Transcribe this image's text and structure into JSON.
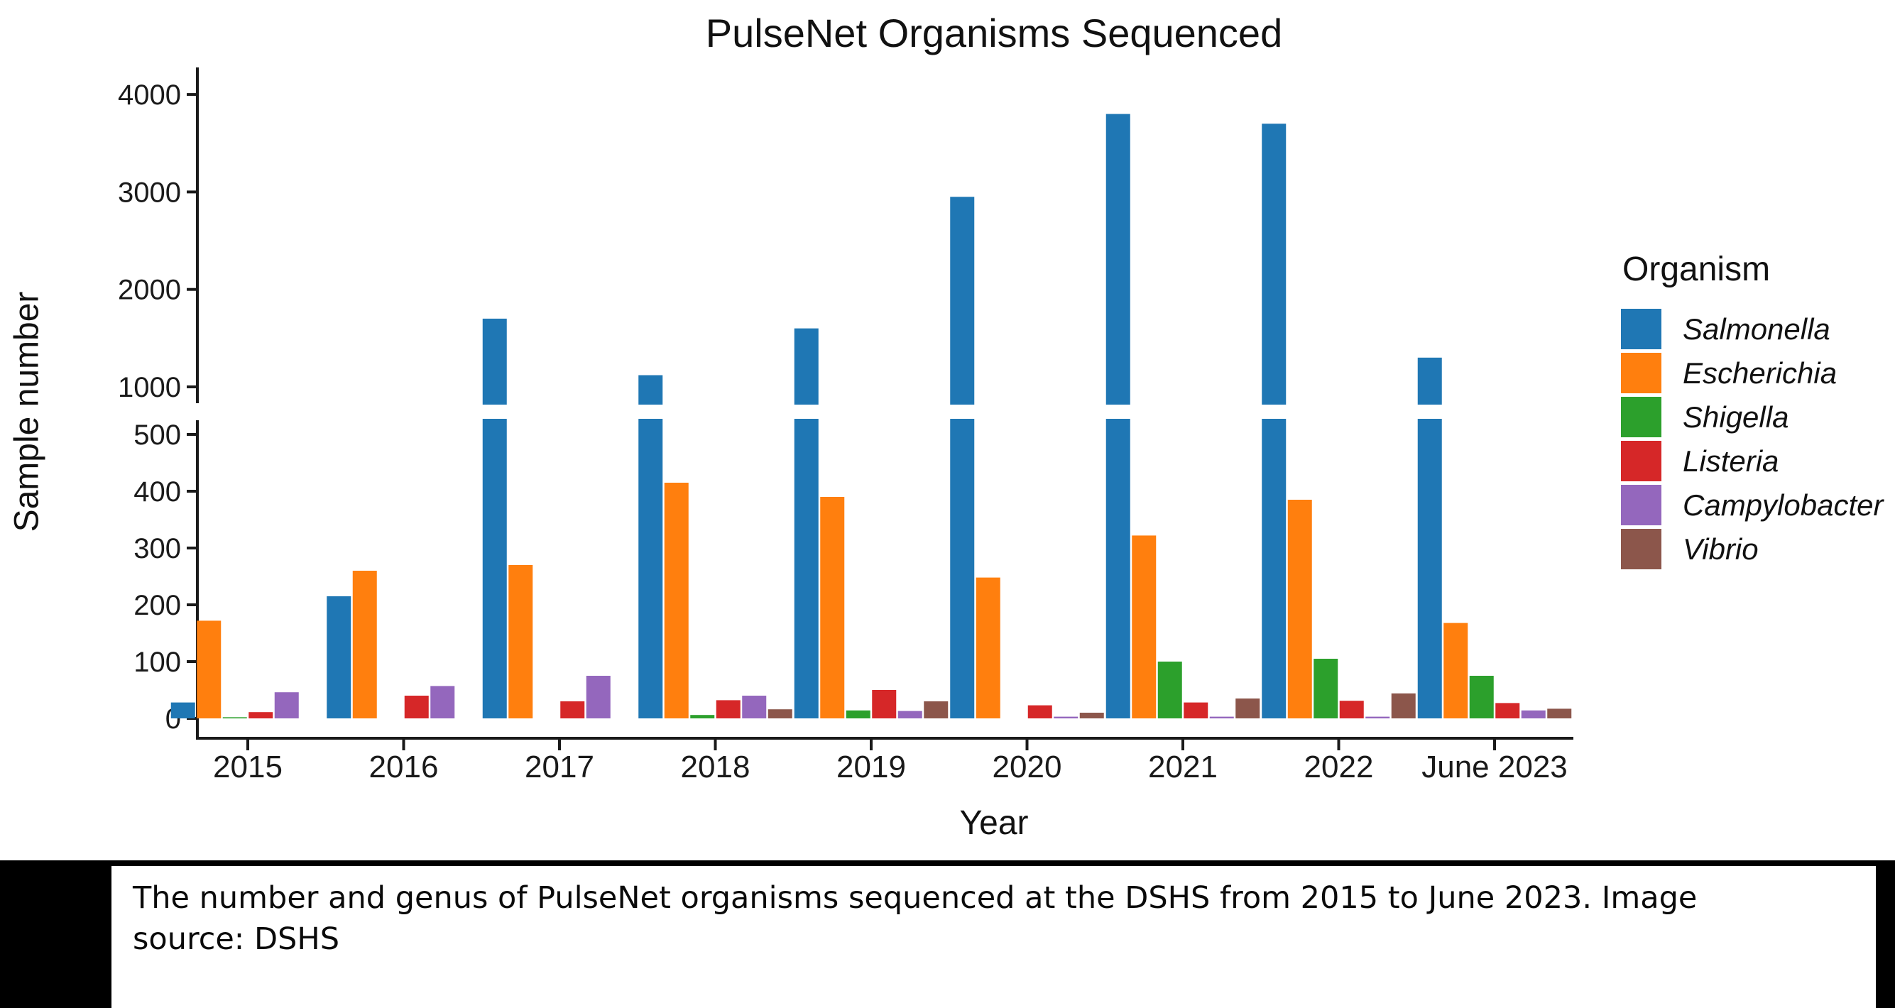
{
  "title": "PulseNet Organisms Sequenced",
  "caption": {
    "line1": "The number and genus of PulseNet organisms sequenced at the DSHS from 2015 to June 2023. Image",
    "line2": "source: DSHS"
  },
  "chart_data": {
    "type": "bar",
    "title": "PulseNet Organisms Sequenced",
    "xlabel": "Year",
    "ylabel": "Sample number",
    "legend_title": "Organism",
    "legend_position": "right",
    "grid": false,
    "broken_y_axis": {
      "lower_ticks": [
        0,
        100,
        200,
        300,
        400,
        500
      ],
      "lower_range": [
        0,
        540
      ],
      "upper_ticks": [
        1000,
        2000,
        3000,
        4000
      ],
      "upper_range": [
        810,
        4300
      ]
    },
    "categories": [
      "2015",
      "2016",
      "2017",
      "2018",
      "2019",
      "2020",
      "2021",
      "2022",
      "June 2023"
    ],
    "series": [
      {
        "name": "Salmonella",
        "color": "#1f77b4",
        "values": [
          28,
          215,
          1700,
          1120,
          1600,
          2950,
          3800,
          3700,
          1300
        ]
      },
      {
        "name": "Escherichia",
        "color": "#ff7f0e",
        "values": [
          172,
          260,
          270,
          415,
          390,
          248,
          322,
          385,
          168
        ]
      },
      {
        "name": "Shigella",
        "color": "#2ca02c",
        "values": [
          2,
          0,
          0,
          6,
          14,
          0,
          100,
          105,
          75
        ]
      },
      {
        "name": "Listeria",
        "color": "#d62728",
        "values": [
          11,
          40,
          30,
          32,
          50,
          23,
          28,
          31,
          27
        ]
      },
      {
        "name": "Campylobacter",
        "color": "#9467bd",
        "values": [
          46,
          57,
          75,
          40,
          13,
          3,
          3,
          3,
          14
        ]
      },
      {
        "name": "Vibrio",
        "color": "#8c564b",
        "values": [
          0,
          0,
          0,
          16,
          30,
          10,
          35,
          44,
          17
        ]
      }
    ]
  }
}
